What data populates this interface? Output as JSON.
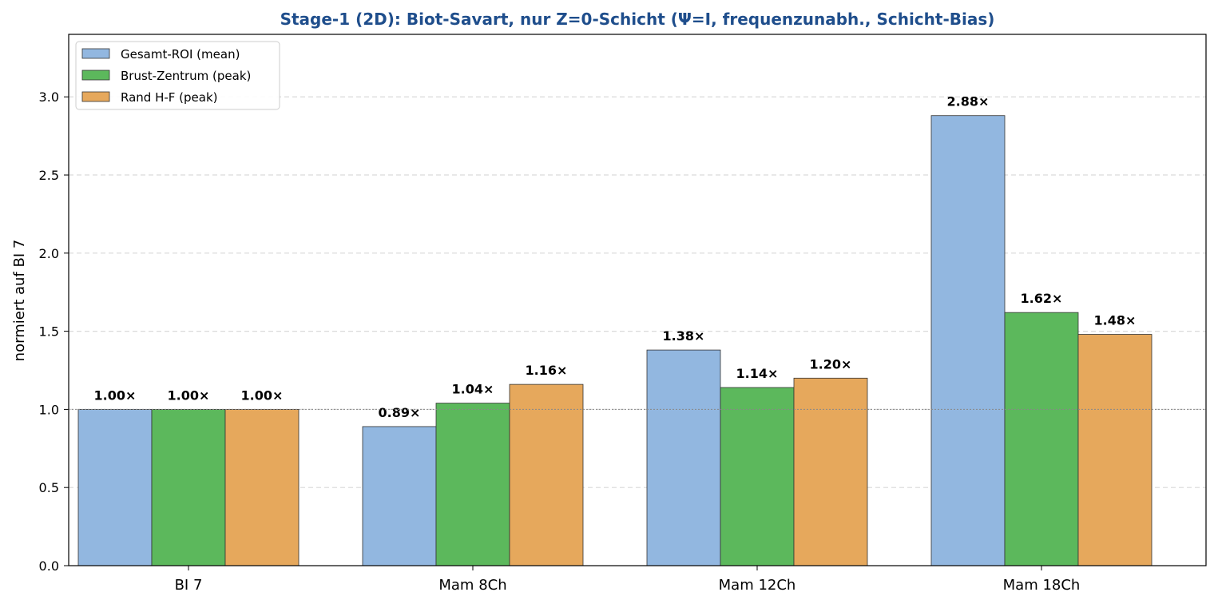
{
  "chart_data": {
    "type": "bar",
    "title": "Stage-1 (2D): Biot-Savart, nur Z=0-Schicht (Ψ=I, frequenzunabh., Schicht-Bias)",
    "xlabel": "",
    "ylabel": "normiert auf BI 7",
    "categories": [
      "BI 7",
      "Mam 8Ch",
      "Mam 12Ch",
      "Mam 18Ch"
    ],
    "series": [
      {
        "name": "Gesamt-ROI (mean)",
        "color": "#92b7e0",
        "values": [
          1.0,
          0.89,
          1.38,
          2.88
        ],
        "labels": [
          "1.00×",
          "0.89×",
          "1.38×",
          "2.88×"
        ]
      },
      {
        "name": "Brust-Zentrum (peak)",
        "color": "#5cb85c",
        "values": [
          1.0,
          1.04,
          1.14,
          1.62
        ],
        "labels": [
          "1.00×",
          "1.04×",
          "1.14×",
          "1.62×"
        ]
      },
      {
        "name": "Rand H-F (peak)",
        "color": "#e6a85c",
        "values": [
          1.0,
          1.16,
          1.2,
          1.48
        ],
        "labels": [
          "1.00×",
          "1.16×",
          "1.20×",
          "1.48×"
        ]
      }
    ],
    "ylim": [
      0,
      3.4
    ],
    "yticks": [
      "0.0",
      "0.5",
      "1.0",
      "1.5",
      "2.0",
      "2.5",
      "3.0"
    ],
    "reference_line": 1.0,
    "grid": "y-dashed",
    "legend_position": "top-left",
    "title_color": "#1f4e8c"
  }
}
